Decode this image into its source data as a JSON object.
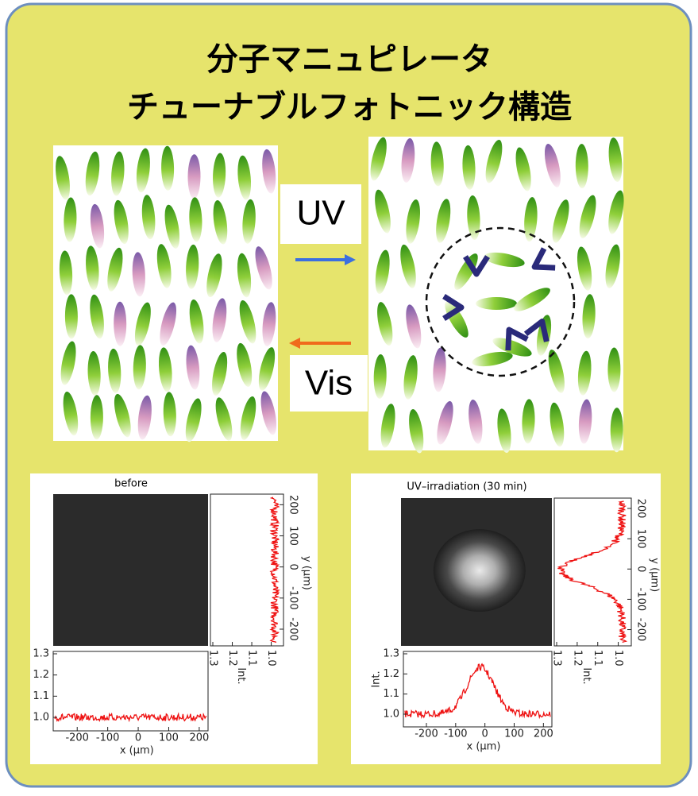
{
  "title": [
    "分子マニュピレータ",
    "チューナブルフォトニック構造"
  ],
  "labels": {
    "uv": "UV",
    "vis": "Vis"
  },
  "plots": [
    {
      "title": "before",
      "x_axis_label": "x (μm)",
      "y_axis_label": "y (μm)",
      "int_label": "Int.",
      "x_ticks": [
        "-200",
        "-100",
        "0",
        "100",
        "200"
      ],
      "y_ticks": [
        "200",
        "100",
        "0",
        "-100",
        "-200"
      ],
      "int_ticks": [
        "1.3",
        "1.2",
        "1.1",
        "1.0"
      ]
    },
    {
      "title": "UV–irradiation (30 min)",
      "x_axis_label": "x (μm)",
      "y_axis_label": "y (μm)",
      "int_label": "Int.",
      "x_ticks": [
        "-200",
        "-100",
        "0",
        "100",
        "200"
      ],
      "y_ticks": [
        "200",
        "100",
        "0",
        "-100",
        "-200"
      ],
      "int_ticks": [
        "1.3",
        "1.2",
        "1.1",
        "1.0"
      ]
    }
  ]
}
